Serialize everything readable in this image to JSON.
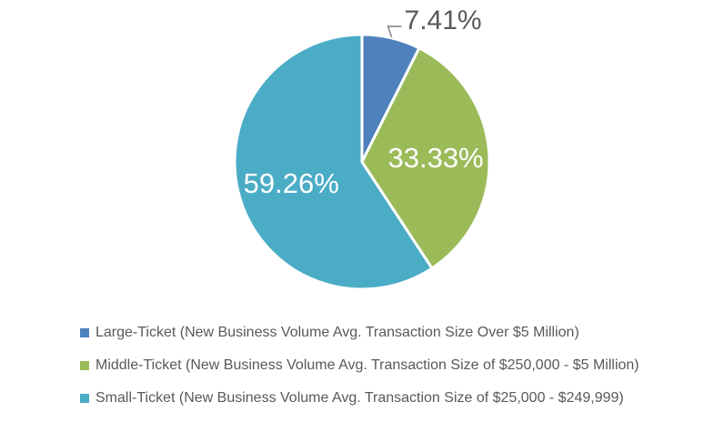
{
  "chart_data": {
    "type": "pie",
    "title": "",
    "labels": [
      "Large-Ticket (New Business Volume Avg. Transaction Size Over $5 Million)",
      "Middle-Ticket (New Business Volume Avg. Transaction Size of $250,000 - $5 Million)",
      "Small-Ticket (New Business Volume Avg. Transaction Size of $25,000 - $249,999)"
    ],
    "slugs": [
      "large-ticket",
      "middle-ticket",
      "small-ticket"
    ],
    "values": [
      7.41,
      33.33,
      59.26
    ],
    "value_labels": [
      "7.41%",
      "33.33%",
      "59.26%"
    ],
    "colors": [
      "#4F81BD",
      "#9BBB59",
      "#4BACC6"
    ],
    "label_placement": [
      "outside",
      "inside",
      "inside"
    ],
    "start_angle_deg": 0,
    "direction": "clockwise",
    "legend_position": "bottom-left",
    "slice_border_color": "#FFFFFF",
    "label_color_inside": "#FFFFFF",
    "label_color_outside": "#595959",
    "leader_line_color": "#7F7F7F",
    "legend_text_color": "#595959",
    "background": "#FFFFFF"
  }
}
